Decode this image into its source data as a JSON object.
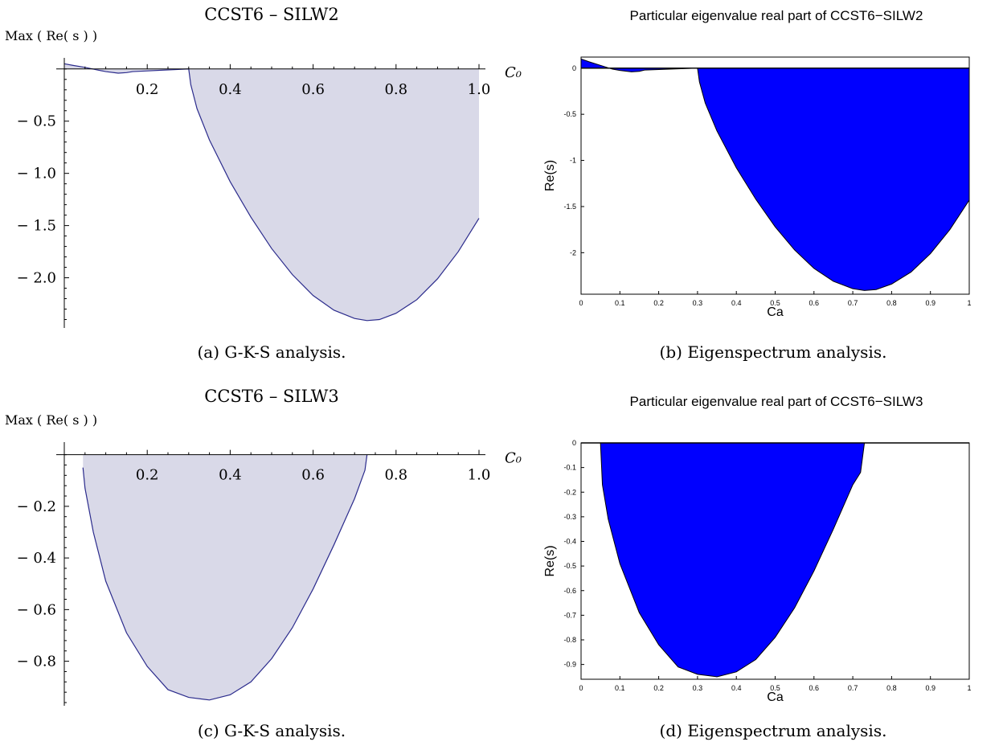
{
  "figure": {
    "captions": [
      "(a) G-K-S analysis.",
      "(b) Eigenspectrum analysis.",
      "(c) G-K-S analysis.",
      "(d) Eigenspectrum analysis."
    ]
  },
  "chart_data": [
    {
      "type": "area",
      "panel": "a",
      "title": "CCST6 – SILW2",
      "xlabel": "C₀",
      "ylabel": "Max ( Re( s ) )",
      "xlim": [
        0,
        1.0
      ],
      "ylim": [
        -2.45,
        0.06
      ],
      "xticks": [
        0.2,
        0.4,
        0.6,
        0.8,
        1.0
      ],
      "xtick_labels": [
        "0.2",
        "0.4",
        "0.6",
        "0.8",
        "1.0"
      ],
      "yticks": [
        -0.5,
        -1.0,
        -1.5,
        -2.0
      ],
      "ytick_labels": [
        "− 0.5",
        "− 1.0",
        "− 1.5",
        "− 2.0"
      ],
      "grid": false,
      "fill_color": "#d9d9e8",
      "line_color": "#2b2b8c",
      "x": [
        0,
        0.02,
        0.05,
        0.08,
        0.1,
        0.13,
        0.15,
        0.165,
        0.3,
        0.305,
        0.32,
        0.35,
        0.4,
        0.45,
        0.5,
        0.55,
        0.6,
        0.65,
        0.7,
        0.73,
        0.76,
        0.8,
        0.85,
        0.9,
        0.95,
        1.0
      ],
      "y": [
        0.05,
        0.035,
        0.015,
        -0.01,
        -0.025,
        -0.04,
        -0.035,
        -0.025,
        0,
        -0.15,
        -0.38,
        -0.68,
        -1.08,
        -1.42,
        -1.72,
        -1.97,
        -2.17,
        -2.31,
        -2.39,
        -2.41,
        -2.4,
        -2.34,
        -2.21,
        -2.01,
        -1.75,
        -1.43
      ]
    },
    {
      "type": "area",
      "panel": "b",
      "title": "Particular eigenvalue real part of CCST6−SILW2",
      "xlabel": "Ca",
      "ylabel": "Re(s)",
      "xlim": [
        0,
        1
      ],
      "ylim": [
        -2.45,
        0.12
      ],
      "xticks": [
        0,
        0.1,
        0.2,
        0.3,
        0.4,
        0.5,
        0.6,
        0.7,
        0.8,
        0.9,
        1
      ],
      "xtick_labels": [
        "0",
        "0.1",
        "0.2",
        "0.3",
        "0.4",
        "0.5",
        "0.6",
        "0.7",
        "0.8",
        "0.9",
        "1"
      ],
      "yticks": [
        0,
        -0.5,
        -1,
        -1.5,
        -2
      ],
      "ytick_labels": [
        "0",
        "-0.5",
        "-1",
        "-1.5",
        "-2"
      ],
      "grid": false,
      "fill_color": "#0000ff",
      "line_color": "#000000",
      "x": [
        0,
        0.02,
        0.05,
        0.08,
        0.1,
        0.13,
        0.15,
        0.165,
        0.3,
        0.305,
        0.32,
        0.35,
        0.4,
        0.45,
        0.5,
        0.55,
        0.6,
        0.65,
        0.7,
        0.73,
        0.76,
        0.8,
        0.85,
        0.9,
        0.95,
        1.0
      ],
      "y": [
        0.1,
        0.07,
        0.03,
        -0.01,
        -0.025,
        -0.04,
        -0.035,
        -0.02,
        0,
        -0.15,
        -0.38,
        -0.68,
        -1.08,
        -1.42,
        -1.72,
        -1.97,
        -2.17,
        -2.31,
        -2.39,
        -2.41,
        -2.4,
        -2.34,
        -2.21,
        -2.01,
        -1.75,
        -1.43
      ]
    },
    {
      "type": "area",
      "panel": "c",
      "title": "CCST6 – SILW3",
      "xlabel": "C₀",
      "ylabel": "Max ( Re( s ) )",
      "xlim": [
        0,
        1.0
      ],
      "ylim": [
        -0.96,
        0.03
      ],
      "xticks": [
        0.2,
        0.4,
        0.6,
        0.8,
        1.0
      ],
      "xtick_labels": [
        "0.2",
        "0.4",
        "0.6",
        "0.8",
        "1.0"
      ],
      "yticks": [
        -0.2,
        -0.4,
        -0.6,
        -0.8
      ],
      "ytick_labels": [
        "− 0.2",
        "− 0.4",
        "− 0.6",
        "− 0.8"
      ],
      "grid": false,
      "fill_color": "#d9d9e8",
      "line_color": "#2b2b8c",
      "x": [
        0.045,
        0.05,
        0.07,
        0.1,
        0.15,
        0.2,
        0.25,
        0.3,
        0.35,
        0.4,
        0.45,
        0.5,
        0.55,
        0.6,
        0.65,
        0.7,
        0.725,
        0.73
      ],
      "y": [
        -0.05,
        -0.13,
        -0.3,
        -0.49,
        -0.69,
        -0.82,
        -0.91,
        -0.94,
        -0.95,
        -0.93,
        -0.88,
        -0.79,
        -0.67,
        -0.52,
        -0.35,
        -0.17,
        -0.06,
        0
      ]
    },
    {
      "type": "area",
      "panel": "d",
      "title": "Particular eigenvalue real part of CCST6−SILW3",
      "xlabel": "Ca",
      "ylabel": "Re(s)",
      "xlim": [
        0,
        1
      ],
      "ylim": [
        -0.96,
        0
      ],
      "xticks": [
        0,
        0.1,
        0.2,
        0.3,
        0.4,
        0.5,
        0.6,
        0.7,
        0.8,
        0.9,
        1
      ],
      "xtick_labels": [
        "0",
        "0.1",
        "0.2",
        "0.3",
        "0.4",
        "0.5",
        "0.6",
        "0.7",
        "0.8",
        "0.9",
        "1"
      ],
      "yticks": [
        0,
        -0.1,
        -0.2,
        -0.3,
        -0.4,
        -0.5,
        -0.6,
        -0.7,
        -0.8,
        -0.9
      ],
      "ytick_labels": [
        "0",
        "-0.1",
        "-0.2",
        "-0.3",
        "-0.4",
        "-0.5",
        "-0.6",
        "-0.7",
        "-0.8",
        "-0.9"
      ],
      "grid": false,
      "fill_color": "#0000ff",
      "line_color": "#000000",
      "x": [
        0.05,
        0.055,
        0.07,
        0.1,
        0.15,
        0.2,
        0.25,
        0.3,
        0.35,
        0.4,
        0.45,
        0.5,
        0.55,
        0.6,
        0.65,
        0.7,
        0.72,
        0.73
      ],
      "y": [
        0,
        -0.17,
        -0.31,
        -0.49,
        -0.69,
        -0.82,
        -0.91,
        -0.94,
        -0.95,
        -0.93,
        -0.88,
        -0.79,
        -0.67,
        -0.52,
        -0.35,
        -0.17,
        -0.12,
        0
      ]
    }
  ]
}
